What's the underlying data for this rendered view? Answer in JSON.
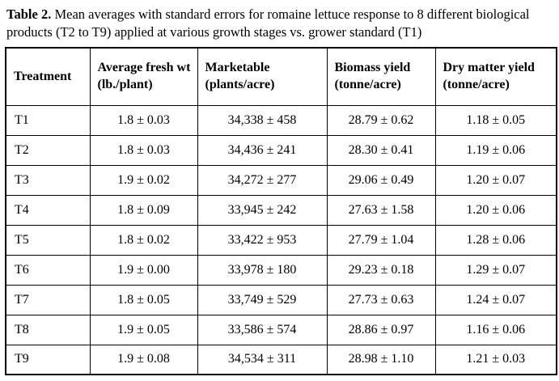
{
  "caption": {
    "label": "Table 2.",
    "text": " Mean averages with standard errors for romaine lettuce response to 8 different biological products (T2 to T9) applied at various growth stages vs. grower standard (T1)"
  },
  "table": {
    "columns": [
      "Treatment",
      "Average fresh wt (lb./plant)",
      "Marketable (plants/acre)",
      "Biomass yield (tonne/acre)",
      "Dry matter yield (tonne/acre)"
    ],
    "rows": [
      {
        "cells": [
          "T1",
          "1.8 ± 0.03",
          "34,338 ± 458",
          "28.79 ± 0.62",
          "1.18 ± 0.05"
        ]
      },
      {
        "cells": [
          "T2",
          "1.8 ± 0.03",
          "34,436 ± 241",
          "28.30 ± 0.41",
          "1.19 ± 0.06"
        ]
      },
      {
        "cells": [
          "T3",
          "1.9 ± 0.02",
          "34,272 ± 277",
          "29.06 ± 0.49",
          "1.20 ± 0.07"
        ]
      },
      {
        "cells": [
          "T4",
          "1.8 ± 0.09",
          "33,945 ± 242",
          "27.63 ± 1.58",
          "1.20 ± 0.06"
        ]
      },
      {
        "cells": [
          "T5",
          "1.8 ± 0.02",
          "33,422 ± 953",
          "27.79 ± 1.04",
          "1.28 ± 0.06"
        ]
      },
      {
        "cells": [
          "T6",
          "1.9 ± 0.00",
          "33,978 ± 180",
          "29.23 ± 0.18",
          "1.29 ± 0.07"
        ]
      },
      {
        "cells": [
          "T7",
          "1.8 ± 0.05",
          "33,749 ± 529",
          "27.73 ± 0.63",
          "1.24 ± 0.07"
        ]
      },
      {
        "cells": [
          "T8",
          "1.9 ± 0.05",
          "33,586 ± 574",
          "28.86 ± 0.97",
          "1.16 ± 0.06"
        ]
      },
      {
        "cells": [
          "T9",
          "1.9 ± 0.08",
          "34,534 ± 311",
          "28.98 ± 1.10",
          "1.21 ± 0.03"
        ]
      }
    ]
  },
  "chart_data": {
    "type": "table",
    "title": "Table 2. Mean averages with standard errors for romaine lettuce response to 8 different biological products (T2 to T9) applied at various growth stages vs. grower standard (T1)",
    "columns": [
      "Treatment",
      "Average fresh wt (lb./plant)",
      "Marketable (plants/acre)",
      "Biomass yield (tonne/acre)",
      "Dry matter yield (tonne/acre)"
    ],
    "rows": [
      [
        "T1",
        "1.8 ± 0.03",
        "34,338 ± 458",
        "28.79 ± 0.62",
        "1.18 ± 0.05"
      ],
      [
        "T2",
        "1.8 ± 0.03",
        "34,436 ± 241",
        "28.30 ± 0.41",
        "1.19 ± 0.06"
      ],
      [
        "T3",
        "1.9 ± 0.02",
        "34,272 ± 277",
        "29.06 ± 0.49",
        "1.20 ± 0.07"
      ],
      [
        "T4",
        "1.8 ± 0.09",
        "33,945 ± 242",
        "27.63 ± 1.58",
        "1.20 ± 0.06"
      ],
      [
        "T5",
        "1.8 ± 0.02",
        "33,422 ± 953",
        "27.79 ± 1.04",
        "1.28 ± 0.06"
      ],
      [
        "T6",
        "1.9 ± 0.00",
        "33,978 ± 180",
        "29.23 ± 0.18",
        "1.29 ± 0.07"
      ],
      [
        "T7",
        "1.8 ± 0.05",
        "33,749 ± 529",
        "27.73 ± 0.63",
        "1.24 ± 0.07"
      ],
      [
        "T8",
        "1.9 ± 0.05",
        "33,586 ± 574",
        "28.86 ± 0.97",
        "1.16 ± 0.06"
      ],
      [
        "T9",
        "1.9 ± 0.08",
        "34,534 ± 311",
        "28.98 ± 1.10",
        "1.21 ± 0.03"
      ]
    ]
  }
}
